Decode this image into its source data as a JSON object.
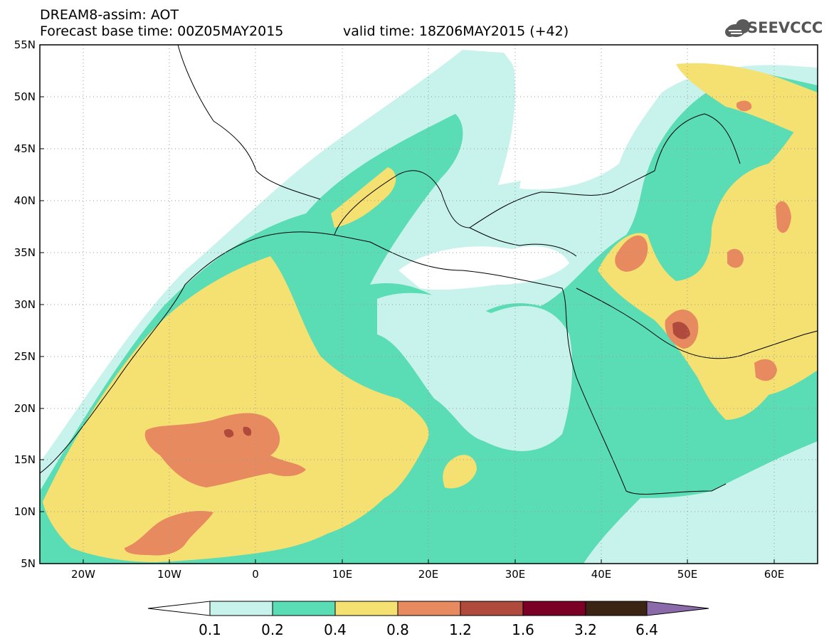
{
  "header": {
    "line1": "DREAM8-assim: AOT",
    "line2": "Forecast base time: 00Z05MAY2015",
    "valid": "valid time: 18Z06MAY2015 (+42)"
  },
  "logo": {
    "text": "SEEVCCC",
    "icon": "cloud-icon"
  },
  "map": {
    "lon_range": [
      -25,
      65
    ],
    "lat_range": [
      5,
      55
    ],
    "lat_ticks": [
      "55N",
      "50N",
      "45N",
      "40N",
      "35N",
      "30N",
      "25N",
      "20N",
      "15N",
      "10N",
      "5N"
    ],
    "lon_ticks": [
      "20W",
      "10W",
      "0",
      "10E",
      "20E",
      "30E",
      "40E",
      "50E",
      "60E"
    ],
    "grid": "dotted"
  },
  "colorbar": {
    "labels": [
      "0.1",
      "0.2",
      "0.4",
      "0.8",
      "1.2",
      "1.6",
      "3.2",
      "6.4"
    ],
    "colors": [
      "#c8f2ec",
      "#5adcb4",
      "#f5e072",
      "#e88a60",
      "#b04a3c",
      "#7a0026",
      "#3c2414",
      "#8a6aa8"
    ]
  }
}
